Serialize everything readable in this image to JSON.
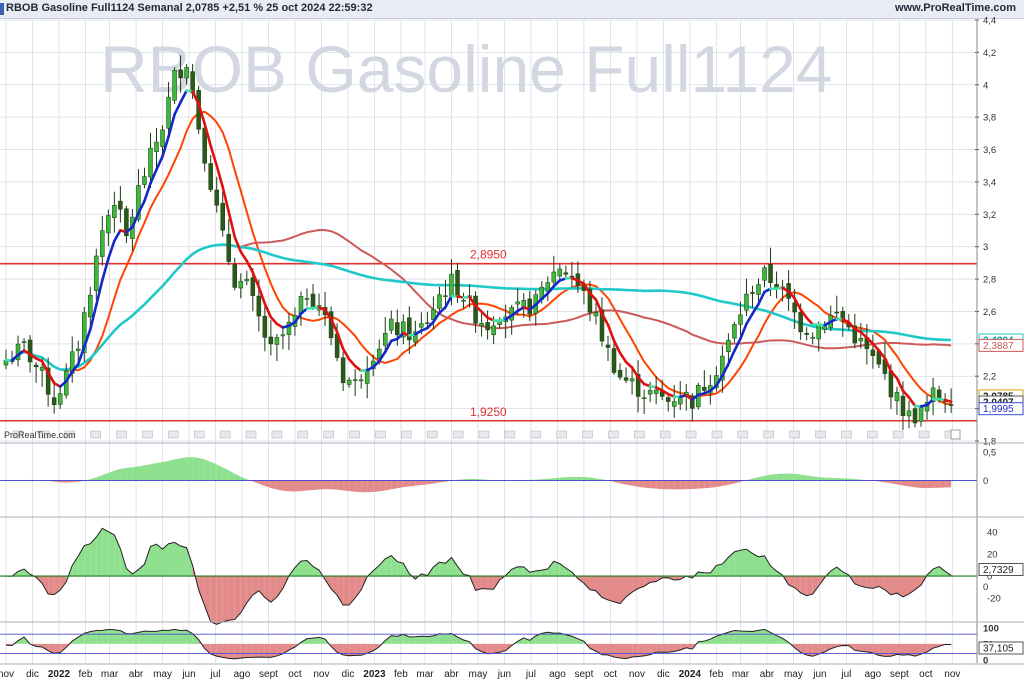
{
  "header": {
    "title": "RBOB Gasoline Full1124 Semanal 2,0785 +2,51 % 25 oct 2024 22:59:32",
    "site": "www.ProRealTime.com"
  },
  "watermark": "RBOB Gasoline Full1124",
  "branding": "ProRealTime.com",
  "chart_data": {
    "type": "candlestick",
    "price_axis": {
      "ticks": [
        "4,4",
        "4,2",
        "4",
        "3,8",
        "3,6",
        "3,4",
        "3,2",
        "3",
        "2,8",
        "2,6",
        "2,4",
        "2,2",
        "2",
        "1,8"
      ],
      "ylim": [
        1.8,
        4.4
      ]
    },
    "x_axis": {
      "ticks": [
        {
          "label": "nov",
          "t": 0.0
        },
        {
          "label": "dic",
          "t": 4.4
        },
        {
          "label": "2022",
          "t": 8.8,
          "bold": true
        },
        {
          "label": "feb",
          "t": 13.2
        },
        {
          "label": "mar",
          "t": 17.2
        },
        {
          "label": "abr",
          "t": 21.6
        },
        {
          "label": "may",
          "t": 26.0
        },
        {
          "label": "jun",
          "t": 30.4
        },
        {
          "label": "jul",
          "t": 34.8
        },
        {
          "label": "ago",
          "t": 39.2
        },
        {
          "label": "sept",
          "t": 43.6
        },
        {
          "label": "oct",
          "t": 48.0
        },
        {
          "label": "nov",
          "t": 52.4
        },
        {
          "label": "dic",
          "t": 56.8
        },
        {
          "label": "2023",
          "t": 61.2,
          "bold": true
        },
        {
          "label": "feb",
          "t": 65.6
        },
        {
          "label": "mar",
          "t": 69.6
        },
        {
          "label": "abr",
          "t": 74.0
        },
        {
          "label": "may",
          "t": 78.4
        },
        {
          "label": "jun",
          "t": 82.8
        },
        {
          "label": "jul",
          "t": 87.2
        },
        {
          "label": "ago",
          "t": 91.6
        },
        {
          "label": "sept",
          "t": 96.0
        },
        {
          "label": "oct",
          "t": 100.4
        },
        {
          "label": "nov",
          "t": 104.8
        },
        {
          "label": "dic",
          "t": 109.2
        },
        {
          "label": "2024",
          "t": 113.6,
          "bold": true
        },
        {
          "label": "feb",
          "t": 118.0
        },
        {
          "label": "mar",
          "t": 122.0
        },
        {
          "label": "abr",
          "t": 126.4
        },
        {
          "label": "may",
          "t": 130.8
        },
        {
          "label": "jun",
          "t": 135.2
        },
        {
          "label": "jul",
          "t": 139.6
        },
        {
          "label": "ago",
          "t": 144.0
        },
        {
          "label": "sept",
          "t": 148.4
        },
        {
          "label": "oct",
          "t": 152.8
        },
        {
          "label": "nov",
          "t": 157.2
        }
      ]
    },
    "anchors": [
      [
        0,
        2.3
      ],
      [
        3,
        2.38
      ],
      [
        6,
        2.2
      ],
      [
        8,
        2.05
      ],
      [
        10,
        2.2
      ],
      [
        12,
        2.4
      ],
      [
        14,
        2.75
      ],
      [
        16,
        3.1
      ],
      [
        18,
        3.3
      ],
      [
        20,
        3.05
      ],
      [
        22,
        3.35
      ],
      [
        24,
        3.55
      ],
      [
        26,
        3.75
      ],
      [
        28,
        4.05
      ],
      [
        30,
        4.15
      ],
      [
        32,
        3.75
      ],
      [
        34,
        3.4
      ],
      [
        36,
        3.05
      ],
      [
        38,
        2.8
      ],
      [
        40,
        2.75
      ],
      [
        42,
        2.55
      ],
      [
        44,
        2.35
      ],
      [
        46,
        2.45
      ],
      [
        48,
        2.55
      ],
      [
        50,
        2.72
      ],
      [
        52,
        2.65
      ],
      [
        54,
        2.45
      ],
      [
        56,
        2.2
      ],
      [
        58,
        2.15
      ],
      [
        60,
        2.3
      ],
      [
        62,
        2.4
      ],
      [
        64,
        2.5
      ],
      [
        66,
        2.48
      ],
      [
        68,
        2.45
      ],
      [
        70,
        2.55
      ],
      [
        72,
        2.7
      ],
      [
        74,
        2.78
      ],
      [
        76,
        2.7
      ],
      [
        78,
        2.58
      ],
      [
        80,
        2.52
      ],
      [
        82,
        2.6
      ],
      [
        84,
        2.58
      ],
      [
        86,
        2.62
      ],
      [
        88,
        2.65
      ],
      [
        90,
        2.8
      ],
      [
        92,
        2.88
      ],
      [
        94,
        2.82
      ],
      [
        96,
        2.7
      ],
      [
        98,
        2.55
      ],
      [
        100,
        2.35
      ],
      [
        102,
        2.2
      ],
      [
        104,
        2.15
      ],
      [
        106,
        2.1
      ],
      [
        108,
        2.08
      ],
      [
        110,
        2.05
      ],
      [
        112,
        2.1
      ],
      [
        114,
        2.05
      ],
      [
        116,
        2.15
      ],
      [
        118,
        2.25
      ],
      [
        120,
        2.4
      ],
      [
        122,
        2.6
      ],
      [
        124,
        2.75
      ],
      [
        126,
        2.82
      ],
      [
        128,
        2.78
      ],
      [
        130,
        2.65
      ],
      [
        132,
        2.52
      ],
      [
        134,
        2.48
      ],
      [
        136,
        2.55
      ],
      [
        138,
        2.58
      ],
      [
        140,
        2.5
      ],
      [
        142,
        2.4
      ],
      [
        144,
        2.3
      ],
      [
        146,
        2.2
      ],
      [
        148,
        2.05
      ],
      [
        150,
        1.95
      ],
      [
        152,
        1.97
      ],
      [
        154,
        2.08
      ],
      [
        156,
        2.08
      ]
    ],
    "horizontal_lines": [
      {
        "value": 2.895,
        "label": "2,8950",
        "color": "#e03030"
      },
      {
        "value": 1.925,
        "label": "1,9250",
        "color": "#e03030"
      }
    ],
    "moving_averages": [
      {
        "color": "#ff4400",
        "period": 10,
        "tag": "2,1453"
      },
      {
        "color": "#cc5a5a",
        "period": 40,
        "tag": "2,3887"
      },
      {
        "color": "#20c8c8",
        "period": 100,
        "tag": "2,4894"
      }
    ],
    "trend_colors": {
      "up": "#1428c8",
      "down": "#e01010",
      "neutral": "#40e0a8"
    },
    "last_price_tags": [
      "2,0785",
      "2,0407",
      "1,9995"
    ],
    "indicator1": {
      "ticks": [
        "0,5",
        "0"
      ],
      "ylim": [
        -0.6,
        0.6
      ]
    },
    "indicator2": {
      "ticks": [
        "40",
        "20",
        "0",
        "-20"
      ],
      "ylim": [
        -40,
        52
      ],
      "value_tag": "2,7329",
      "zero_tag": "0"
    },
    "indicator3": {
      "ticks": [
        "100",
        "50",
        "0"
      ],
      "ylim": [
        -10,
        112
      ],
      "value_tag": "37,105"
    },
    "colors": {
      "bull": "#3db83d",
      "bear": "#2a5a1a",
      "wick": "#1a3a10",
      "pos_fill": "#8ee08e",
      "neg_fill": "#e38a8a",
      "grid": "#d8dde6"
    }
  }
}
